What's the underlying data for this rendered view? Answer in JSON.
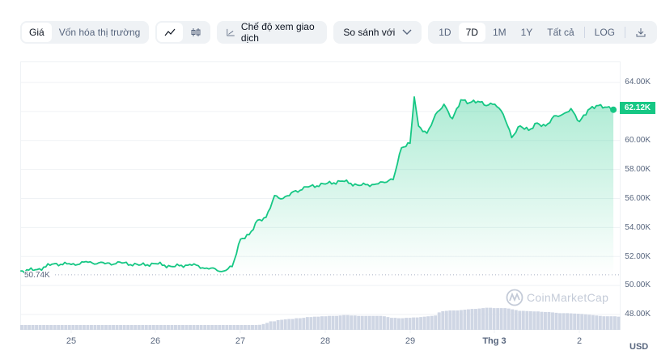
{
  "toolbar": {
    "metric_tabs": [
      {
        "label": "Giá",
        "active": true
      },
      {
        "label": "Vốn hóa thị trường",
        "active": false
      }
    ],
    "chart_type_tabs": [
      {
        "icon": "line-chart-icon",
        "glyph": "∿",
        "active": true
      },
      {
        "icon": "candlestick-icon",
        "glyph": "ϕϕ",
        "active": false
      }
    ],
    "trading_view_label": "Chế độ xem giao dịch",
    "compare_select": {
      "value": "So sánh với"
    },
    "ranges": [
      {
        "label": "1D",
        "active": false
      },
      {
        "label": "7D",
        "active": true
      },
      {
        "label": "1M",
        "active": false
      },
      {
        "label": "1Y",
        "active": false
      },
      {
        "label": "Tất cả",
        "active": false
      }
    ],
    "log_label": "LOG"
  },
  "watermark": "CoinMarketCap",
  "currency_label": "USD",
  "current_price_label": "62.12K",
  "reference_price_label": "50.74K",
  "colors": {
    "line": "#16c784",
    "volume": "#cfd6e4",
    "grid": "#eff2f5",
    "text": "#58667e"
  },
  "chart_data": {
    "type": "line",
    "title": "",
    "xlabel": "",
    "ylabel": "USD",
    "x_ticks": [
      "25",
      "26",
      "27",
      "28",
      "29",
      "Thg 3",
      "2"
    ],
    "y_ticks": [
      "64.00K",
      "62.00K",
      "60.00K",
      "58.00K",
      "56.00K",
      "54.00K",
      "52.00K",
      "50.00K",
      "48.00K"
    ],
    "ylim": [
      47000,
      65000
    ],
    "grid": true,
    "current_price": 62120,
    "reference_line": 50740,
    "series": [
      {
        "name": "Price",
        "x": [
          "24.4",
          "24.6",
          "24.8",
          "25.0",
          "25.2",
          "25.4",
          "25.6",
          "25.8",
          "26.0",
          "26.2",
          "26.4",
          "26.6",
          "26.8",
          "26.9",
          "27.0",
          "27.1",
          "27.2",
          "27.3",
          "27.4",
          "27.5",
          "27.6",
          "27.8",
          "28.0",
          "28.2",
          "28.4",
          "28.6",
          "28.7",
          "28.8",
          "28.9",
          "29.0",
          "29.05",
          "29.1",
          "29.2",
          "29.3",
          "29.4",
          "29.5",
          "29.6",
          "29.7",
          "29.8",
          "29.9",
          "30.0",
          "30.1",
          "30.2",
          "30.3",
          "30.4",
          "30.5",
          "30.6",
          "30.7",
          "30.8",
          "30.9",
          "31.0",
          "31.1",
          "31.2",
          "31.3",
          "31.4"
        ],
        "values": [
          51000,
          51100,
          51500,
          51450,
          51600,
          51500,
          51550,
          51400,
          51500,
          51300,
          51450,
          51200,
          51000,
          51300,
          53200,
          53500,
          54500,
          54700,
          56200,
          56000,
          56400,
          56800,
          57000,
          57200,
          56900,
          57000,
          57100,
          57300,
          59500,
          59800,
          63000,
          61000,
          60500,
          61800,
          62500,
          61500,
          62800,
          62600,
          62700,
          62400,
          62500,
          61800,
          60200,
          61000,
          60700,
          61200,
          61000,
          61700,
          61800,
          62200,
          61300,
          62100,
          62400,
          62300,
          62120
        ]
      },
      {
        "name": "Volume",
        "type": "bar",
        "relative_heights": [
          0.23,
          0.23,
          0.2,
          0.17,
          0.17,
          0.17,
          0.17,
          0.17,
          0.17,
          0.17,
          0.17,
          0.17,
          0.17,
          0.17,
          0.17,
          0.17,
          0.17,
          0.17,
          0.17,
          0.17,
          0.17,
          0.17,
          0.17,
          0.17,
          0.17,
          0.17,
          0.17,
          0.17,
          0.17,
          0.17,
          0.17,
          0.17,
          0.17,
          0.17,
          0.17,
          0.17,
          0.17,
          0.17,
          0.17,
          0.17,
          0.17,
          0.17,
          0.17,
          0.17,
          0.17,
          0.17,
          0.17,
          0.17,
          0.17,
          0.17,
          0.17,
          0.17,
          0.17,
          0.17,
          0.17,
          0.16,
          0.16,
          0.16,
          0.16,
          0.16,
          0.18,
          0.18,
          0.2,
          0.22,
          0.24,
          0.26,
          0.3,
          0.36,
          0.44,
          0.44,
          0.5,
          0.52,
          0.54,
          0.56,
          0.56,
          0.6,
          0.6,
          0.62,
          0.66,
          0.66,
          0.68,
          0.68,
          0.7,
          0.7,
          0.72,
          0.72,
          0.72,
          0.74,
          0.76,
          0.76,
          0.74,
          0.74,
          0.72,
          0.72,
          0.72,
          0.72,
          0.72,
          0.72,
          0.72,
          0.7,
          0.66,
          0.62,
          0.62,
          0.6,
          0.6,
          0.62,
          0.62,
          0.64,
          0.64,
          0.66,
          0.68,
          0.7,
          0.72,
          0.74,
          0.9,
          0.96,
          0.98,
          1.0,
          1.0,
          1.0,
          1.02,
          1.04,
          1.06,
          1.08,
          1.08,
          1.1,
          1.12,
          1.14,
          1.14,
          1.12,
          1.12,
          1.12,
          1.12,
          1.1,
          1.06,
          1.02,
          0.98,
          0.98,
          0.97,
          0.96,
          0.95,
          0.95,
          0.93,
          0.92,
          0.92,
          0.9,
          0.88,
          0.86,
          0.86,
          0.86,
          0.85,
          0.84,
          0.83,
          0.82,
          0.8,
          0.78,
          0.76,
          0.74,
          0.72,
          0.7,
          0.7,
          0.7,
          0.7,
          0.68
        ]
      }
    ]
  }
}
